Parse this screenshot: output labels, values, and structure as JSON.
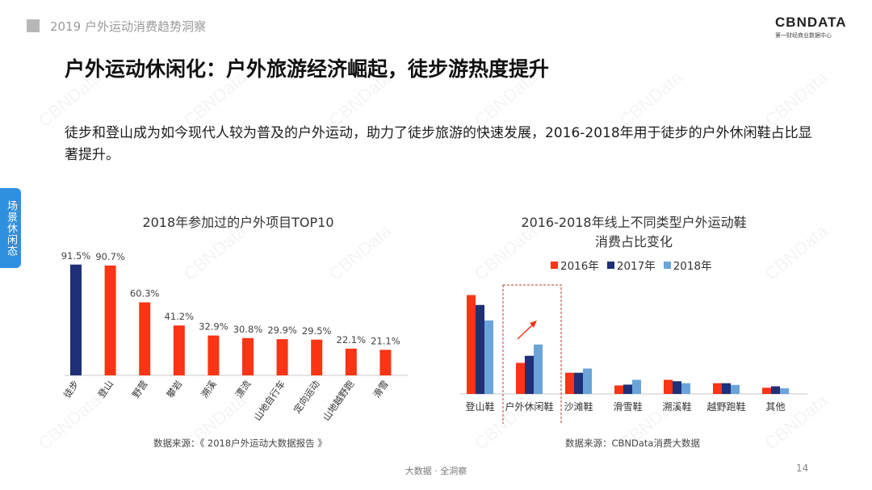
{
  "header": {
    "report_title": "2019 户外运动消费趋势洞察"
  },
  "logo": {
    "name_left": "CB",
    "name_mid": "N",
    "name_right": "DATA",
    "subtitle": "第一财经商业数据中心"
  },
  "side_tab": {
    "label": "场景休闲态"
  },
  "page": {
    "title": "户外运动休闲化：户外旅游经济崛起，徒步游热度提升",
    "description": "徒步和登山成为如今现代人较为普及的户外运动，助力了徒步旅游的快速发展，2016-2018年用于徒步的户外休闲鞋占比显著提升。"
  },
  "colors": {
    "red": "#fa3414",
    "navy": "#1f2f78",
    "light_blue": "#6aa4d8",
    "side_tab": "#2f8fe0"
  },
  "watermark": "CBNData",
  "footer": {
    "text": "大数据 · 全洞察",
    "page_number": "14"
  },
  "chart_data": [
    {
      "type": "bar",
      "title": "2018年参加过的户外项目TOP10",
      "categories": [
        "徒步",
        "登山",
        "野营",
        "攀岩",
        "溯溪",
        "漂流",
        "山地自行车",
        "定向运动",
        "山地越野跑",
        "滑雪"
      ],
      "values": [
        91.5,
        90.7,
        60.3,
        41.2,
        32.9,
        30.8,
        29.9,
        29.5,
        22.1,
        21.1
      ],
      "value_labels": [
        "91.5%",
        "90.7%",
        "60.3%",
        "41.2%",
        "32.9%",
        "30.8%",
        "29.9%",
        "29.5%",
        "22.1%",
        "21.1%"
      ],
      "highlight_index": 0,
      "ylim": [
        0,
        100
      ],
      "grid": false,
      "source": "数据来源：《 2018户外运动大数据报告 》"
    },
    {
      "type": "bar",
      "title": "2016-2018年线上不同类型户外运动鞋消费占比变化",
      "title_lines": [
        "2016-2018年线上不同类型户外运动鞋",
        "消费占比变化"
      ],
      "categories": [
        "登山鞋",
        "户外休闲鞋",
        "沙滩鞋",
        "滑雪鞋",
        "溯溪鞋",
        "越野跑鞋",
        "其他"
      ],
      "series": [
        {
          "name": "2016年",
          "values": [
            35,
            11,
            7.5,
            3,
            5,
            3.8,
            2.2
          ]
        },
        {
          "name": "2017年",
          "values": [
            31.5,
            13.5,
            7.5,
            3.3,
            4.5,
            3.8,
            2.7
          ]
        },
        {
          "name": "2018年",
          "values": [
            26,
            17.5,
            9,
            5,
            3.8,
            3.2,
            2
          ]
        }
      ],
      "highlight_category": "户外休闲鞋",
      "ylim": [
        0,
        40
      ],
      "grid": false,
      "legend_position": "top",
      "source": "数据来源：CBNData消费大数据"
    }
  ]
}
